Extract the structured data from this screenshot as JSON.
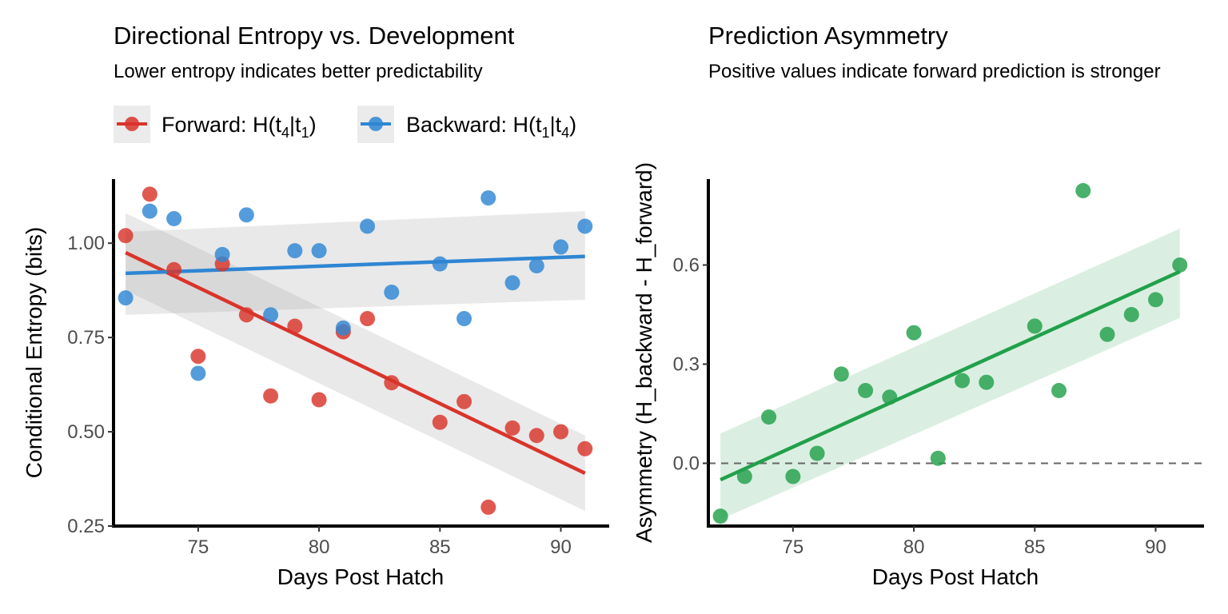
{
  "chart_data": [
    {
      "type": "scatter",
      "title": "Directional Entropy vs. Development",
      "subtitle": "Lower entropy indicates better predictability",
      "xlabel": "Days Post Hatch",
      "ylabel": "Conditional Entropy (bits)",
      "xlim": [
        71.5,
        92.0
      ],
      "ylim": [
        0.25,
        1.17
      ],
      "xticks": [
        "75",
        "80",
        "85",
        "90"
      ],
      "yticks": [
        "0.25",
        "0.50",
        "0.75",
        "1.00"
      ],
      "legend_position": "top",
      "grid": false,
      "series": [
        {
          "name": "Forward: H(t4|t1)",
          "name_parts": {
            "prefix": "Forward: H(t",
            "sub1": "4",
            "mid": "|t",
            "sub2": "1",
            "suffix": ")"
          },
          "color": "#d9342b",
          "x": [
            72,
            73,
            74,
            75,
            76,
            77,
            78,
            79,
            80,
            81,
            82,
            83,
            85,
            86,
            87,
            88,
            89,
            90,
            91
          ],
          "y": [
            1.02,
            1.13,
            0.93,
            0.7,
            0.945,
            0.81,
            0.595,
            0.78,
            0.585,
            0.765,
            0.8,
            0.63,
            0.525,
            0.58,
            0.3,
            0.51,
            0.49,
            0.5,
            0.455
          ],
          "fit": {
            "x": [
              72,
              91
            ],
            "y": [
              0.975,
              0.39
            ],
            "ci_lower": [
              0.875,
              0.29
            ],
            "ci_upper": [
              1.08,
              0.49
            ]
          }
        },
        {
          "name": "Backward: H(t1|t4)",
          "name_parts": {
            "prefix": "Backward: H(t",
            "sub1": "1",
            "mid": "|t",
            "sub2": "4",
            "suffix": ")"
          },
          "color": "#2e86d3",
          "x": [
            72,
            73,
            74,
            75,
            76,
            77,
            78,
            79,
            80,
            81,
            82,
            83,
            85,
            86,
            87,
            88,
            89,
            90,
            91
          ],
          "y": [
            0.855,
            1.085,
            1.065,
            0.655,
            0.97,
            1.075,
            0.81,
            0.98,
            0.98,
            0.775,
            1.045,
            0.87,
            0.945,
            0.8,
            1.12,
            0.895,
            0.94,
            0.99,
            1.045
          ],
          "fit": {
            "x": [
              72,
              91
            ],
            "y": [
              0.92,
              0.965
            ],
            "ci_lower": [
              0.81,
              0.85
            ],
            "ci_upper": [
              1.03,
              1.085
            ]
          }
        }
      ]
    },
    {
      "type": "scatter",
      "title": "Prediction Asymmetry",
      "subtitle": "Positive values indicate forward prediction is stronger",
      "xlabel": "Days Post Hatch",
      "ylabel": "Asymmetry (H_backward - H_forward)",
      "xlim": [
        71.5,
        92.0
      ],
      "ylim": [
        -0.19,
        0.86
      ],
      "xticks": [
        "75",
        "80",
        "85",
        "90"
      ],
      "yticks": [
        "0.0",
        "0.3",
        "0.6"
      ],
      "reference_line": {
        "y": 0,
        "style": "dashed",
        "color": "#666666"
      },
      "grid": false,
      "series": [
        {
          "color": "#22a04b",
          "x": [
            72,
            73,
            74,
            75,
            76,
            77,
            78,
            79,
            80,
            81,
            82,
            83,
            85,
            86,
            87,
            88,
            89,
            90,
            91
          ],
          "y": [
            -0.16,
            -0.04,
            0.14,
            -0.04,
            0.03,
            0.27,
            0.22,
            0.2,
            0.395,
            0.015,
            0.25,
            0.245,
            0.415,
            0.22,
            0.825,
            0.39,
            0.45,
            0.495,
            0.6
          ],
          "fit": {
            "x": [
              72,
              91
            ],
            "y": [
              -0.05,
              0.58
            ],
            "ci_lower": [
              -0.17,
              0.44
            ],
            "ci_upper": [
              0.09,
              0.71
            ]
          }
        }
      ]
    }
  ]
}
